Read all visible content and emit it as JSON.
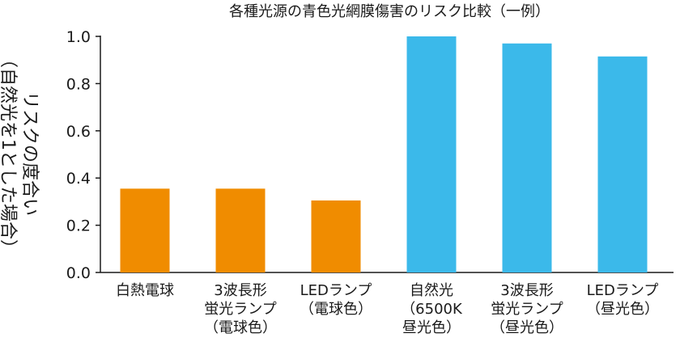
{
  "chart_data": {
    "type": "bar",
    "title": "各種光源の青色光網膜傷害のリスク比較（一例）",
    "ylabel": "リスクの度合い",
    "ylabel_sub": "（自然光を1とした場合）",
    "xlabel": "",
    "ylim": [
      0,
      1.0
    ],
    "yticks": [
      0.0,
      0.2,
      0.4,
      0.6,
      0.8,
      1.0
    ],
    "ytick_labels": [
      "0.0",
      "0.2",
      "0.4",
      "0.6",
      "0.8",
      "1.0"
    ],
    "grid": false,
    "categories": [
      [
        "白熱電球"
      ],
      [
        "3波長形",
        "蛍光ランプ",
        "（電球色）"
      ],
      [
        "LEDランプ",
        "（電球色）"
      ],
      [
        "自然光",
        "（6500K",
        "昼光色）"
      ],
      [
        "3波長形",
        "蛍光ランプ",
        "（昼光色）"
      ],
      [
        "LEDランプ",
        "（昼光色）"
      ]
    ],
    "values": [
      0.355,
      0.355,
      0.305,
      1.0,
      0.97,
      0.915
    ],
    "bar_colors": [
      "#f08c00",
      "#f08c00",
      "#f08c00",
      "#3bb9ea",
      "#3bb9ea",
      "#3bb9ea"
    ]
  }
}
